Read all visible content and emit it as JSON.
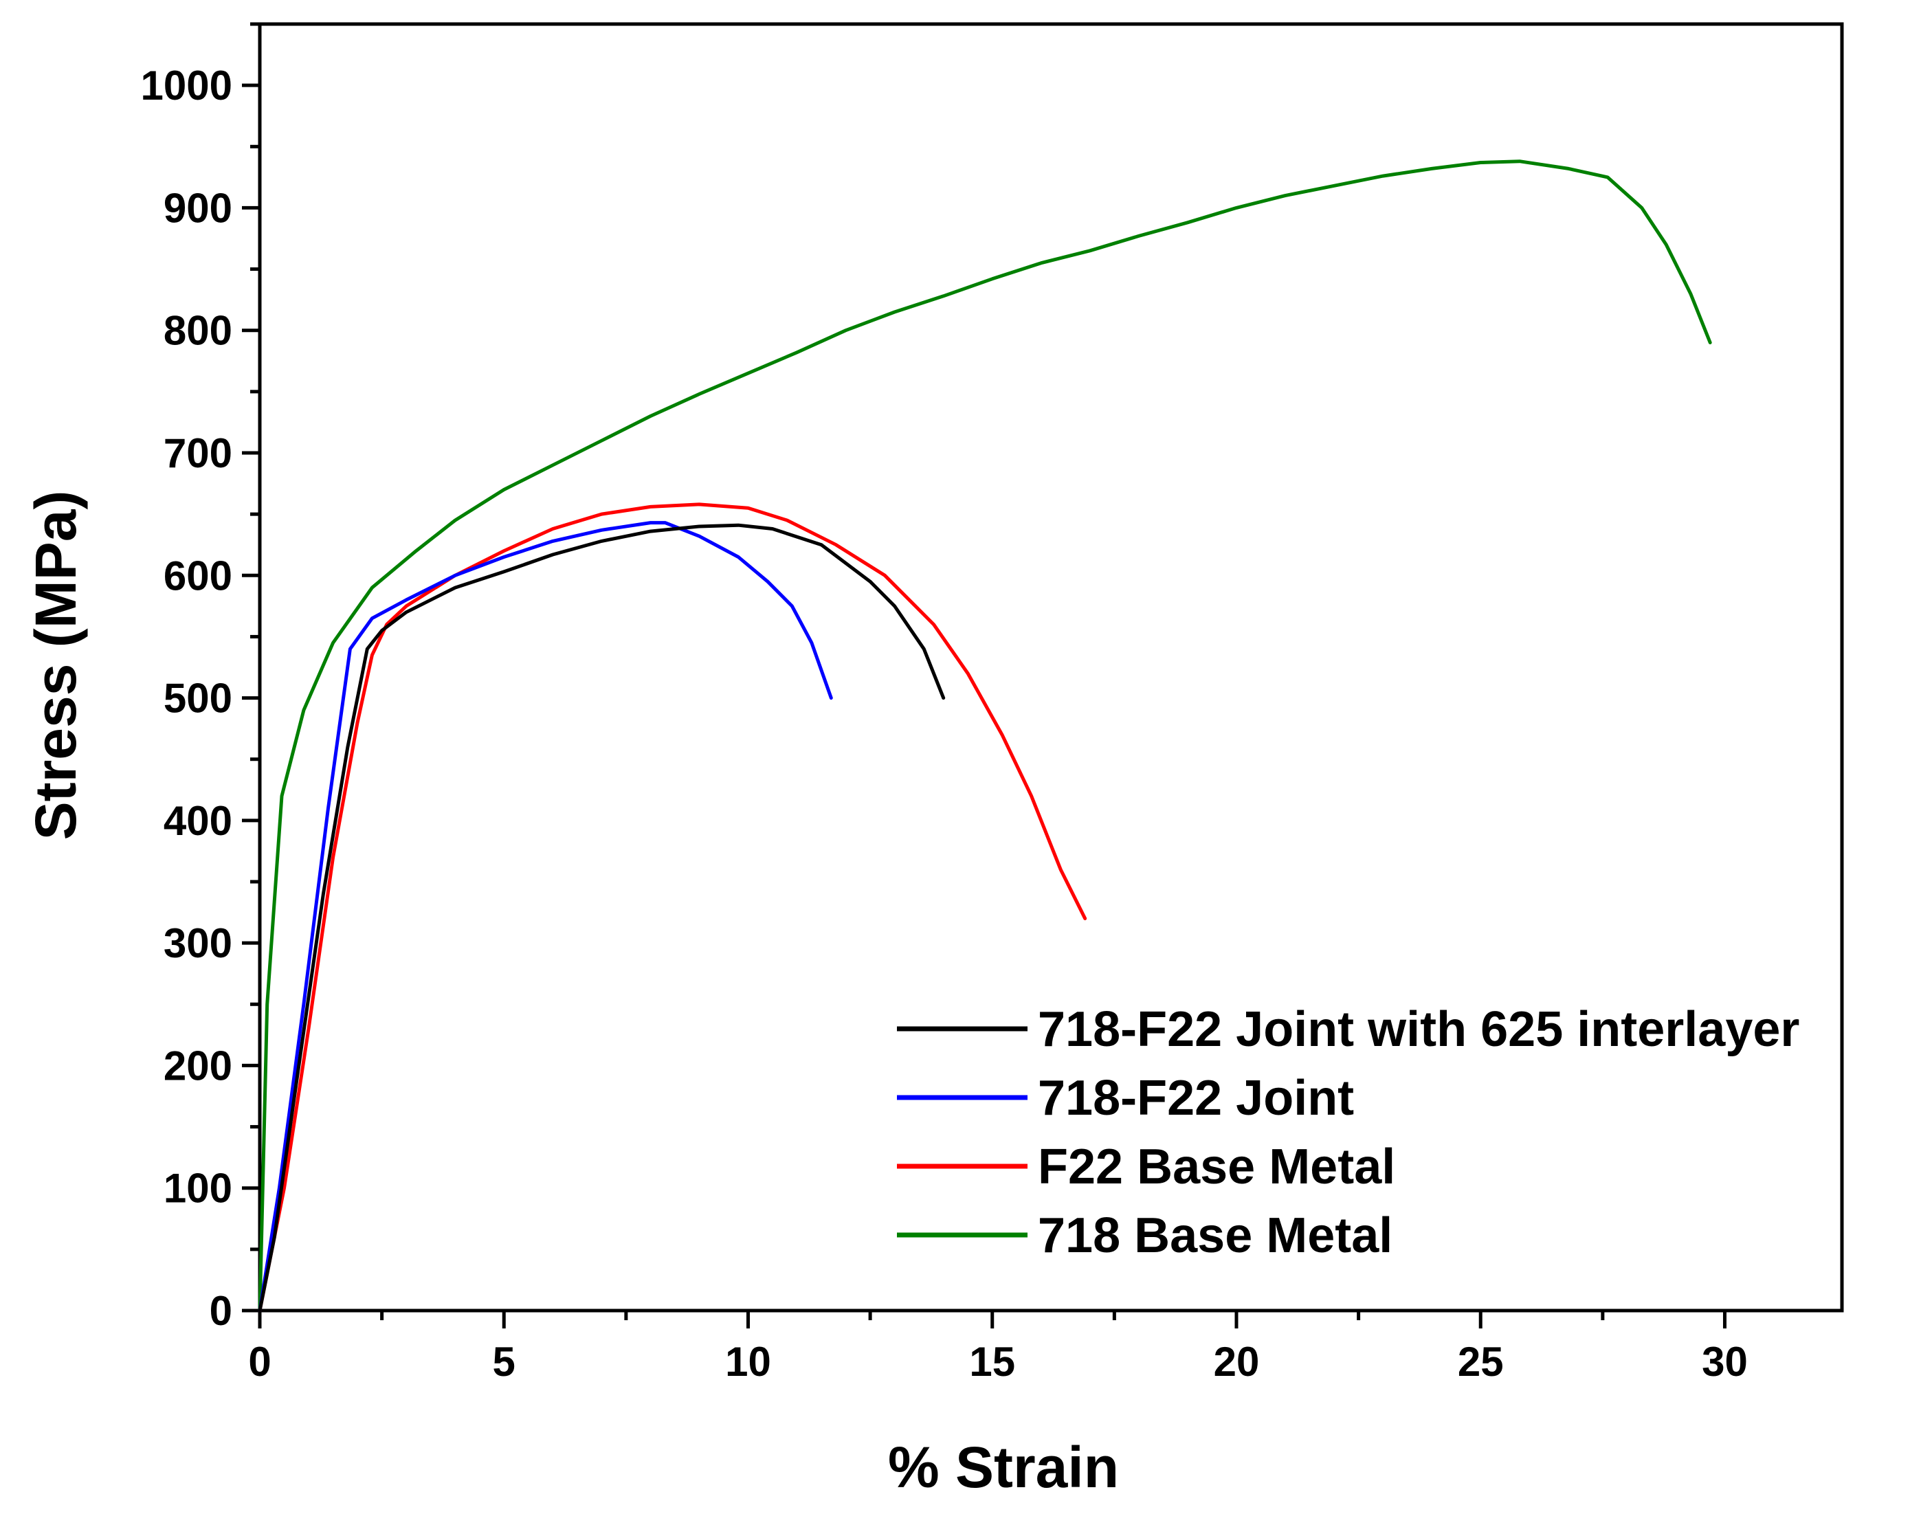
{
  "chart_data": {
    "type": "line",
    "title": "",
    "xlabel": "% Strain",
    "ylabel": "Stress (MPa)",
    "xlim": [
      0,
      32.4
    ],
    "ylim": [
      0,
      1050
    ],
    "xticks": [
      0,
      5,
      10,
      15,
      20,
      25,
      30
    ],
    "yticks": [
      0,
      100,
      200,
      300,
      400,
      500,
      600,
      700,
      800,
      900,
      1000
    ],
    "grid": false,
    "legend_position": "bottom-right",
    "series": [
      {
        "name": "718-F22 Joint with 625 interlayer",
        "color": "#000000",
        "points": [
          [
            0,
            0
          ],
          [
            0.3,
            60
          ],
          [
            0.8,
            200
          ],
          [
            1.3,
            340
          ],
          [
            1.8,
            460
          ],
          [
            2.2,
            540
          ],
          [
            2.5,
            555
          ],
          [
            3,
            570
          ],
          [
            4,
            590
          ],
          [
            5,
            603
          ],
          [
            6,
            617
          ],
          [
            7,
            628
          ],
          [
            8,
            636
          ],
          [
            9,
            640
          ],
          [
            9.8,
            641
          ],
          [
            10.5,
            638
          ],
          [
            11.5,
            625
          ],
          [
            12.5,
            595
          ],
          [
            13,
            575
          ],
          [
            13.6,
            540
          ],
          [
            14,
            500
          ]
        ]
      },
      {
        "name": "718-F22 Joint",
        "color": "#0000ff",
        "points": [
          [
            0,
            0
          ],
          [
            0.4,
            100
          ],
          [
            0.9,
            250
          ],
          [
            1.4,
            410
          ],
          [
            1.85,
            540
          ],
          [
            2.3,
            565
          ],
          [
            3,
            580
          ],
          [
            4,
            600
          ],
          [
            5,
            615
          ],
          [
            6,
            628
          ],
          [
            7,
            637
          ],
          [
            8,
            643
          ],
          [
            8.3,
            643
          ],
          [
            9,
            632
          ],
          [
            9.8,
            615
          ],
          [
            10.4,
            595
          ],
          [
            10.9,
            575
          ],
          [
            11.3,
            545
          ],
          [
            11.7,
            500
          ]
        ]
      },
      {
        "name": "F22 Base Metal",
        "color": "#ff0000",
        "points": [
          [
            0,
            0
          ],
          [
            0.5,
            100
          ],
          [
            1,
            230
          ],
          [
            1.5,
            370
          ],
          [
            2.0,
            480
          ],
          [
            2.3,
            535
          ],
          [
            2.6,
            560
          ],
          [
            3,
            575
          ],
          [
            4,
            600
          ],
          [
            5,
            620
          ],
          [
            6,
            638
          ],
          [
            7,
            650
          ],
          [
            8,
            656
          ],
          [
            9,
            658
          ],
          [
            10,
            655
          ],
          [
            10.8,
            645
          ],
          [
            11.8,
            625
          ],
          [
            12.8,
            600
          ],
          [
            13.8,
            560
          ],
          [
            14.5,
            520
          ],
          [
            15.2,
            470
          ],
          [
            15.8,
            420
          ],
          [
            16.4,
            360
          ],
          [
            16.9,
            320
          ]
        ]
      },
      {
        "name": "718 Base Metal",
        "color": "#008000",
        "points": [
          [
            0,
            0
          ],
          [
            0.15,
            250
          ],
          [
            0.45,
            420
          ],
          [
            0.9,
            490
          ],
          [
            1.5,
            545
          ],
          [
            2.3,
            590
          ],
          [
            3.2,
            620
          ],
          [
            4,
            645
          ],
          [
            5,
            670
          ],
          [
            6,
            690
          ],
          [
            7,
            710
          ],
          [
            8,
            730
          ],
          [
            9,
            748
          ],
          [
            10,
            765
          ],
          [
            11,
            782
          ],
          [
            12,
            800
          ],
          [
            13,
            815
          ],
          [
            14,
            828
          ],
          [
            15,
            842
          ],
          [
            16,
            855
          ],
          [
            17,
            865
          ],
          [
            18,
            877
          ],
          [
            19,
            888
          ],
          [
            20,
            900
          ],
          [
            21,
            910
          ],
          [
            22,
            918
          ],
          [
            23,
            926
          ],
          [
            24,
            932
          ],
          [
            25,
            937
          ],
          [
            25.8,
            938
          ],
          [
            26.8,
            932
          ],
          [
            27.6,
            925
          ],
          [
            28.3,
            900
          ],
          [
            28.8,
            870
          ],
          [
            29.3,
            830
          ],
          [
            29.7,
            790
          ]
        ]
      }
    ]
  }
}
